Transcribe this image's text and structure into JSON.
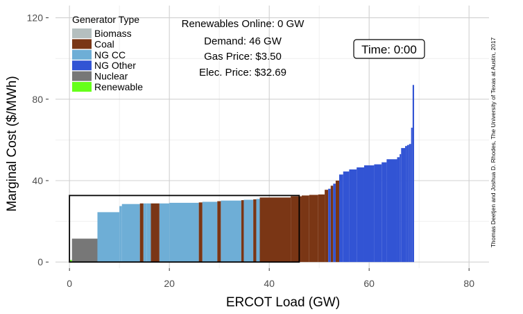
{
  "chart_data": {
    "type": "bar",
    "xlabel": "ERCOT Load (GW)",
    "ylabel": "Marginal Cost ($/MWh)",
    "xlim": [
      -2.8,
      84
    ],
    "ylim": [
      -3,
      126
    ],
    "x_ticks": [
      0,
      20,
      40,
      60,
      80
    ],
    "y_ticks": [
      0,
      40,
      80,
      120
    ],
    "grid": true,
    "legend": {
      "title": "Generator Type",
      "position": "top-left",
      "entries": [
        {
          "name": "Biomass",
          "color": "#b5bfbf"
        },
        {
          "name": "Coal",
          "color": "#7a3615"
        },
        {
          "name": "NG CC",
          "color": "#6eaed6"
        },
        {
          "name": "NG Other",
          "color": "#3254d4"
        },
        {
          "name": "Nuclear",
          "color": "#777777"
        },
        {
          "name": "Renewable",
          "color": "#66ff1a"
        }
      ]
    },
    "series": [
      {
        "name": "Renewable",
        "blocks": [
          [
            0.0,
            0.5,
            1
          ]
        ]
      },
      {
        "name": "Nuclear",
        "blocks": [
          [
            0.5,
            5.6,
            11.5
          ]
        ]
      },
      {
        "name": "NG CC",
        "blocks": [
          [
            5.6,
            10.0,
            24.5
          ],
          [
            10.0,
            10.5,
            27.5
          ],
          [
            10.5,
            14.1,
            28.5
          ],
          [
            14.8,
            15.5,
            28.8
          ],
          [
            15.5,
            16.3,
            28.8
          ],
          [
            18.0,
            20.0,
            28.8
          ],
          [
            20.0,
            25.9,
            29.1
          ],
          [
            26.6,
            29.6,
            29.6
          ],
          [
            30.3,
            34.4,
            30.2
          ],
          [
            34.9,
            36.8,
            30.6
          ],
          [
            37.4,
            38.1,
            31.0
          ]
        ]
      },
      {
        "name": "Coal",
        "blocks": [
          [
            14.1,
            14.8,
            28.8
          ],
          [
            16.3,
            18.0,
            28.8
          ],
          [
            25.9,
            26.6,
            29.3
          ],
          [
            29.6,
            30.3,
            29.9
          ],
          [
            34.4,
            34.9,
            30.4
          ],
          [
            36.8,
            37.4,
            30.8
          ],
          [
            38.1,
            44.3,
            31.7
          ],
          [
            44.3,
            46.5,
            32.3
          ],
          [
            46.5,
            48.0,
            32.7
          ],
          [
            48.0,
            49.8,
            33.0
          ],
          [
            49.8,
            51.1,
            33.2
          ],
          [
            51.1,
            51.8,
            35.5
          ],
          [
            52.3,
            52.8,
            37.5
          ],
          [
            53.3,
            54.0,
            40.0
          ]
        ]
      },
      {
        "name": "NG Other",
        "blocks": [
          [
            51.8,
            52.3,
            36.0
          ],
          [
            52.8,
            53.3,
            38.5
          ],
          [
            54.0,
            54.8,
            43.0
          ],
          [
            54.8,
            56.0,
            44.5
          ],
          [
            56.0,
            57.5,
            45.5
          ],
          [
            57.5,
            59.0,
            46.5
          ],
          [
            59.0,
            61.0,
            47.5
          ],
          [
            61.0,
            62.5,
            48.0
          ],
          [
            62.5,
            63.5,
            49.0
          ],
          [
            63.5,
            65.6,
            50.5
          ],
          [
            65.6,
            66.1,
            51.5
          ],
          [
            66.1,
            66.4,
            53.0
          ],
          [
            66.4,
            67.2,
            56.0
          ],
          [
            67.2,
            67.6,
            57.0
          ],
          [
            67.6,
            68.0,
            57.5
          ],
          [
            68.0,
            68.4,
            58.0
          ],
          [
            68.4,
            68.7,
            66.0
          ],
          [
            68.7,
            69.0,
            87.0
          ]
        ]
      }
    ],
    "price_box": {
      "x_start": 0,
      "x_end": 46,
      "y": 32.69
    }
  },
  "info": {
    "renewables_online": "Renewables Online: 0 GW",
    "demand": "Demand: 46 GW",
    "gas_price": "Gas Price: $3.50",
    "elec_price": "Elec. Price: $32.69"
  },
  "time_label": "Time: 0:00",
  "credit": "Thomas Deetjen and Joshua D. Rhodes, The University of Texas at Austin, 2017"
}
